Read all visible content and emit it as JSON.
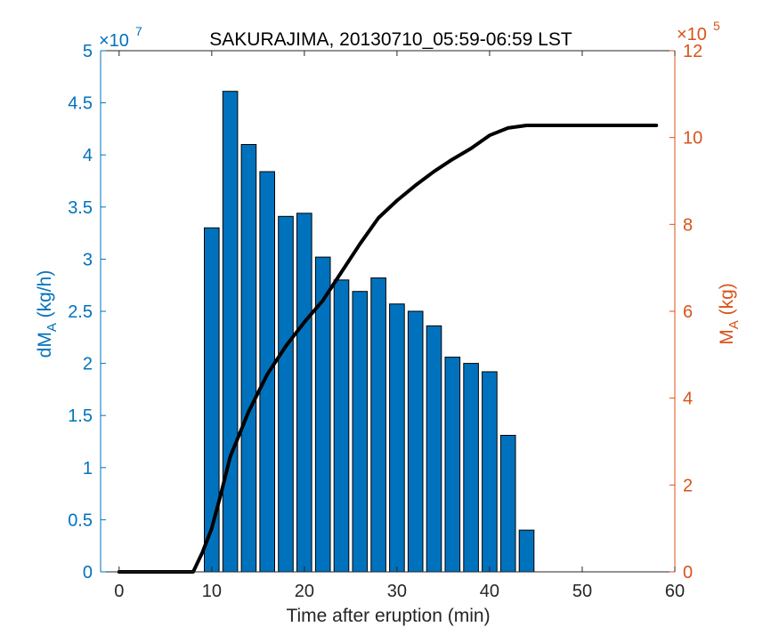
{
  "chart_data": {
    "type": "bar",
    "title": "SAKURAJIMA, 20130710_05:59-06:59 LST",
    "xlabel": "Time after eruption (min)",
    "xlim": [
      -2,
      60
    ],
    "xticks": [
      0,
      10,
      20,
      30,
      40,
      50,
      60
    ],
    "left_axis": {
      "label_main": "dM",
      "label_sub": "A",
      "label_unit": " (kg/h)",
      "ylim": [
        0,
        5
      ],
      "ticks": [
        0,
        0.5,
        1,
        1.5,
        2,
        2.5,
        3,
        3.5,
        4,
        4.5,
        5
      ],
      "tick_labels": [
        "0",
        "0.5",
        "1",
        "1.5",
        "2",
        "2.5",
        "3",
        "3.5",
        "4",
        "4.5",
        "5"
      ],
      "exponent_base": "×10",
      "exponent": "7",
      "color": "#0072BD"
    },
    "right_axis": {
      "label_main": "M",
      "label_sub": "A",
      "label_unit": " (kg)",
      "ylim": [
        0,
        12
      ],
      "ticks": [
        0,
        2,
        4,
        6,
        8,
        10,
        12
      ],
      "tick_labels": [
        "0",
        "2",
        "4",
        "6",
        "8",
        "10",
        "12"
      ],
      "exponent_base": "×10",
      "exponent": "5",
      "color": "#D95319"
    },
    "bars": {
      "x": [
        10,
        12,
        14,
        16,
        18,
        20,
        22,
        24,
        26,
        28,
        30,
        32,
        34,
        36,
        38,
        40,
        42,
        44
      ],
      "values": [
        3.3,
        4.61,
        4.1,
        3.84,
        3.41,
        3.44,
        3.02,
        2.8,
        2.69,
        2.82,
        2.57,
        2.5,
        2.36,
        2.06,
        2.0,
        1.92,
        1.31,
        0.4
      ],
      "color": "#0072BD",
      "width": 1.6
    },
    "line": {
      "x": [
        0,
        8,
        9,
        10,
        11,
        12,
        14,
        16,
        18,
        20,
        22,
        24,
        26,
        28,
        30,
        32,
        34,
        36,
        38,
        40,
        42,
        44,
        46,
        48,
        50,
        52,
        54,
        56,
        58
      ],
      "values": [
        0,
        0,
        0.45,
        1.0,
        1.8,
        2.65,
        3.7,
        4.55,
        5.2,
        5.75,
        6.25,
        6.9,
        7.55,
        8.15,
        8.55,
        8.9,
        9.22,
        9.5,
        9.75,
        10.05,
        10.22,
        10.28,
        10.28,
        10.28,
        10.28,
        10.28,
        10.28,
        10.28,
        10.28
      ],
      "color": "#000000"
    }
  }
}
